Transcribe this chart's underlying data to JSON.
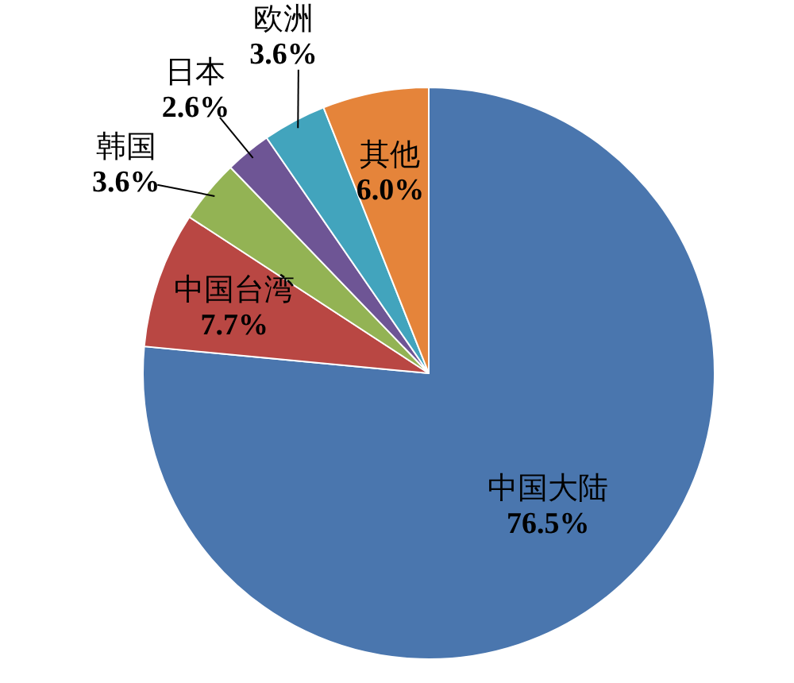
{
  "chart_data": {
    "type": "pie",
    "categories": [
      "中国大陆",
      "中国台湾",
      "韩国",
      "日本",
      "欧洲",
      "其他"
    ],
    "values": [
      76.5,
      7.7,
      3.6,
      2.6,
      3.6,
      6.0
    ],
    "colors": [
      "#4a76ae",
      "#b94743",
      "#93b354",
      "#6e5595",
      "#42a4bd",
      "#e5843a"
    ],
    "value_labels": [
      "76.5%",
      "7.7%",
      "3.6%",
      "2.6%",
      "3.6%",
      "6.0%"
    ],
    "legend": false
  }
}
